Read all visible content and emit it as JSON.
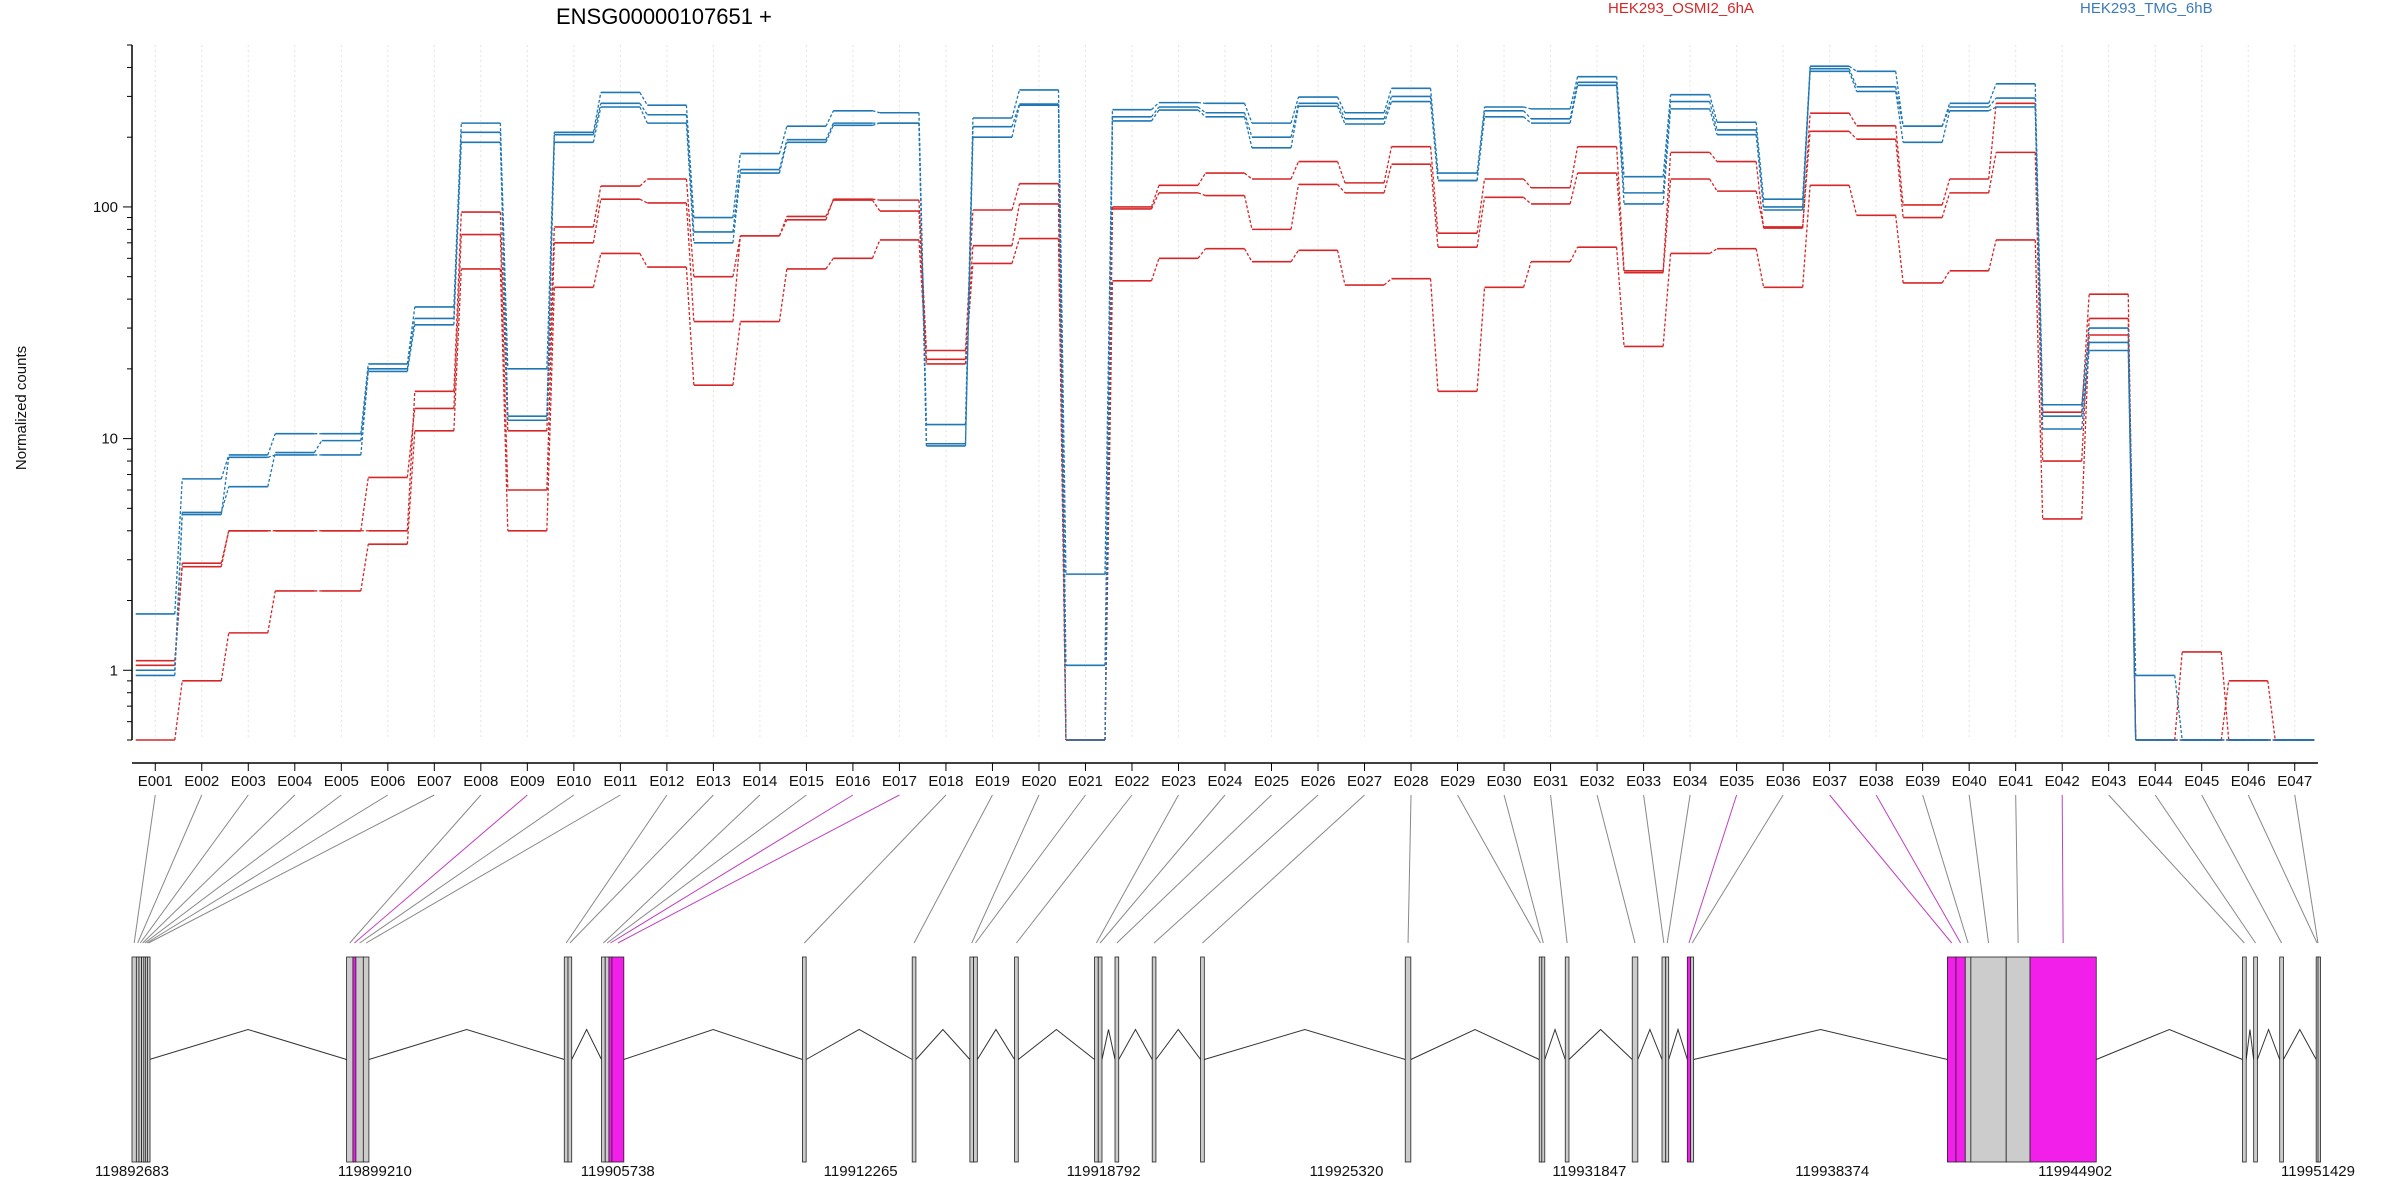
{
  "chart_data": {
    "type": "line",
    "title": "ENSG00000107651 +",
    "xlabel": "",
    "ylabel": "Normalized counts",
    "y_scale": "log",
    "ylim": [
      0.5,
      500
    ],
    "y_ticks": [
      1,
      10,
      100
    ],
    "y_tick_labels": [
      "1",
      "10",
      "100"
    ],
    "grid": "vertical dotted",
    "legend_placement": "top",
    "categories": [
      "E001",
      "E002",
      "E003",
      "E004",
      "E005",
      "E006",
      "E007",
      "E008",
      "E009",
      "E010",
      "E011",
      "E012",
      "E013",
      "E014",
      "E015",
      "E016",
      "E017",
      "E018",
      "E019",
      "E020",
      "E021",
      "E022",
      "E023",
      "E024",
      "E025",
      "E026",
      "E027",
      "E028",
      "E029",
      "E030",
      "E031",
      "E032",
      "E033",
      "E034",
      "E035",
      "E036",
      "E037",
      "E038",
      "E039",
      "E040",
      "E041",
      "E042",
      "E043",
      "E044",
      "E045",
      "E046",
      "E047"
    ],
    "legend": [
      {
        "label": "HEK293_OSMI2_6hA",
        "color": "#d62728"
      },
      {
        "label": "HEK293_TMG_6hB",
        "color": "#1f77b4"
      }
    ],
    "series": [
      {
        "group": "HEK293_OSMI2_6hA",
        "color": "#d62728",
        "values": [
          1.05,
          2.9,
          4,
          4,
          4,
          4,
          16,
          95,
          10.8,
          82,
          123,
          132,
          50,
          75,
          88,
          108,
          107,
          24,
          97,
          126,
          0.5,
          100,
          124,
          140,
          132,
          157,
          127,
          182,
          77,
          132,
          121,
          182,
          53,
          172,
          157,
          81,
          254,
          224,
          102,
          132,
          280,
          13,
          42,
          0.5,
          0.5,
          0.5,
          0.5
        ]
      },
      {
        "group": "HEK293_OSMI2_6hA",
        "color": "#d62728",
        "values": [
          1.1,
          2.8,
          4,
          4,
          4,
          6.8,
          13.5,
          76,
          6,
          70,
          108,
          104,
          32,
          75,
          91,
          107,
          96,
          22,
          68,
          103,
          0.5,
          98,
          115,
          112,
          80,
          125,
          115,
          153,
          67,
          110,
          103,
          140,
          52,
          132,
          117,
          82,
          212,
          196,
          90,
          115,
          172,
          8,
          33,
          0.5,
          1.2,
          0.5,
          0.5
        ]
      },
      {
        "group": "HEK293_OSMI2_6hA",
        "color": "#d62728",
        "values": [
          0.5,
          0.9,
          1.45,
          2.2,
          2.2,
          3.5,
          10.8,
          54,
          4,
          45,
          63,
          55,
          17,
          32,
          54,
          60,
          72,
          21,
          57,
          73,
          0.5,
          48,
          60,
          66,
          58,
          65,
          46,
          49,
          16,
          45,
          58,
          67,
          25,
          63,
          66,
          45,
          124,
          92,
          47,
          53,
          72,
          4.5,
          28,
          0.5,
          0.5,
          0.9,
          0.5
        ]
      },
      {
        "group": "HEK293_TMG_6hB",
        "color": "#1f77b4",
        "values": [
          1.75,
          6.7,
          8.5,
          10.5,
          10.5,
          21,
          37,
          230,
          20,
          210,
          312,
          275,
          90,
          170,
          223,
          260,
          255,
          11.5,
          242,
          320,
          2.6,
          263,
          282,
          280,
          230,
          298,
          255,
          325,
          140,
          270,
          265,
          365,
          135,
          305,
          232,
          108,
          405,
          385,
          223,
          280,
          340,
          14,
          30,
          0.95,
          0.5,
          0.5,
          0.5
        ]
      },
      {
        "group": "HEK293_TMG_6hB",
        "color": "#1f77b4",
        "values": [
          1.0,
          4.8,
          6.2,
          8.7,
          9.8,
          20,
          33,
          210,
          12.5,
          205,
          280,
          250,
          78,
          145,
          195,
          230,
          230,
          9.5,
          222,
          278,
          1.05,
          245,
          270,
          255,
          200,
          280,
          240,
          300,
          130,
          260,
          240,
          345,
          115,
          285,
          215,
          100,
          395,
          330,
          223,
          270,
          295,
          12.5,
          26,
          0.5,
          0.5,
          0.5,
          0.5
        ]
      },
      {
        "group": "HEK293_TMG_6hB",
        "color": "#1f77b4",
        "values": [
          0.95,
          4.7,
          8.3,
          8.5,
          8.5,
          19.5,
          31,
          190,
          12,
          190,
          270,
          230,
          70,
          140,
          190,
          225,
          230,
          9.3,
          200,
          275,
          0.5,
          235,
          262,
          245,
          180,
          272,
          228,
          285,
          130,
          245,
          230,
          335,
          103,
          265,
          205,
          97,
          385,
          315,
          190,
          260,
          270,
          11,
          24,
          0.5,
          0.5,
          0.5,
          0.5
        ]
      }
    ]
  },
  "gene_model": {
    "coordinate_labels": [
      "119892683",
      "119899210",
      "119905738",
      "119912265",
      "119918792",
      "119925320",
      "119931847",
      "119938374",
      "119944902",
      "119951429"
    ],
    "gene_start": 119892683,
    "gene_end": 119951429,
    "colors": {
      "exon_fill": "#cccccc",
      "significant_fill": "#f21fea",
      "connector": "#888888",
      "significant_connector": "#c040c0"
    },
    "exons": [
      {
        "id": "E001",
        "start": 119892683,
        "end": 119892800,
        "sig": false
      },
      {
        "id": "E002",
        "start": 119892800,
        "end": 119892870,
        "sig": false
      },
      {
        "id": "E003",
        "start": 119892870,
        "end": 119892940,
        "sig": false
      },
      {
        "id": "E004",
        "start": 119892940,
        "end": 119893000,
        "sig": false
      },
      {
        "id": "E005",
        "start": 119893000,
        "end": 119893050,
        "sig": false
      },
      {
        "id": "E006",
        "start": 119893050,
        "end": 119893100,
        "sig": false
      },
      {
        "id": "E007",
        "start": 119893100,
        "end": 119893150,
        "sig": false
      },
      {
        "id": "E008",
        "start": 119898450,
        "end": 119898620,
        "sig": false
      },
      {
        "id": "E009",
        "start": 119898620,
        "end": 119898700,
        "sig": true
      },
      {
        "id": "E010",
        "start": 119898700,
        "end": 119898900,
        "sig": false
      },
      {
        "id": "E011",
        "start": 119898900,
        "end": 119899050,
        "sig": false
      },
      {
        "id": "E012",
        "start": 119904300,
        "end": 119904400,
        "sig": false
      },
      {
        "id": "E013",
        "start": 119904400,
        "end": 119904500,
        "sig": false
      },
      {
        "id": "E014",
        "start": 119905300,
        "end": 119905400,
        "sig": false
      },
      {
        "id": "E015",
        "start": 119905400,
        "end": 119905500,
        "sig": false
      },
      {
        "id": "E016",
        "start": 119905500,
        "end": 119905580,
        "sig": true
      },
      {
        "id": "E017",
        "start": 119905580,
        "end": 119905900,
        "sig": true
      },
      {
        "id": "E018",
        "start": 119910700,
        "end": 119910800,
        "sig": false
      },
      {
        "id": "E019",
        "start": 119913650,
        "end": 119913750,
        "sig": false
      },
      {
        "id": "E020",
        "start": 119915200,
        "end": 119915300,
        "sig": false
      },
      {
        "id": "E021",
        "start": 119915300,
        "end": 119915400,
        "sig": false
      },
      {
        "id": "E022",
        "start": 119916400,
        "end": 119916500,
        "sig": false
      },
      {
        "id": "E023",
        "start": 119918550,
        "end": 119918650,
        "sig": false
      },
      {
        "id": "E024",
        "start": 119918650,
        "end": 119918750,
        "sig": false
      },
      {
        "id": "E025",
        "start": 119919100,
        "end": 119919200,
        "sig": false
      },
      {
        "id": "E026",
        "start": 119920100,
        "end": 119920200,
        "sig": false
      },
      {
        "id": "E027",
        "start": 119921400,
        "end": 119921500,
        "sig": false
      },
      {
        "id": "E028",
        "start": 119926900,
        "end": 119927050,
        "sig": false
      },
      {
        "id": "E029",
        "start": 119930500,
        "end": 119930570,
        "sig": false
      },
      {
        "id": "E030",
        "start": 119930570,
        "end": 119930650,
        "sig": false
      },
      {
        "id": "E031",
        "start": 119931200,
        "end": 119931300,
        "sig": false
      },
      {
        "id": "E032",
        "start": 119933000,
        "end": 119933150,
        "sig": false
      },
      {
        "id": "E033",
        "start": 119933800,
        "end": 119933900,
        "sig": false
      },
      {
        "id": "E034",
        "start": 119933900,
        "end": 119933980,
        "sig": false
      },
      {
        "id": "E035",
        "start": 119934480,
        "end": 119934570,
        "sig": true
      },
      {
        "id": "E036",
        "start": 119934570,
        "end": 119934650,
        "sig": false
      },
      {
        "id": "E037",
        "start": 119941470,
        "end": 119941700,
        "sig": true
      },
      {
        "id": "E038",
        "start": 119941700,
        "end": 119941950,
        "sig": true
      },
      {
        "id": "E039",
        "start": 119941950,
        "end": 119942100,
        "sig": false
      },
      {
        "id": "E040",
        "start": 119942100,
        "end": 119943050,
        "sig": false
      },
      {
        "id": "E041",
        "start": 119943050,
        "end": 119943690,
        "sig": false
      },
      {
        "id": "E042",
        "start": 119943690,
        "end": 119945470,
        "sig": true
      },
      {
        "id": "E043",
        "start": 119949400,
        "end": 119949500,
        "sig": false
      },
      {
        "id": "E044",
        "start": 119949700,
        "end": 119949800,
        "sig": false
      },
      {
        "id": "E045",
        "start": 119950400,
        "end": 119950500,
        "sig": false
      },
      {
        "id": "E046",
        "start": 119951380,
        "end": 119951429,
        "sig": false
      },
      {
        "id": "E047",
        "start": 119951429,
        "end": 119951429,
        "sig": false
      }
    ],
    "introns": [
      [
        119893150,
        119898450
      ],
      [
        119899050,
        119904300
      ],
      [
        119904500,
        119905300
      ],
      [
        119905900,
        119910700
      ],
      [
        119910800,
        119913650
      ],
      [
        119913750,
        119915200
      ],
      [
        119915400,
        119916400
      ],
      [
        119916500,
        119918550
      ],
      [
        119918750,
        119919100
      ],
      [
        119919200,
        119920100
      ],
      [
        119920200,
        119921400
      ],
      [
        119921500,
        119926900
      ],
      [
        119927050,
        119930500
      ],
      [
        119930650,
        119931200
      ],
      [
        119931300,
        119933000
      ],
      [
        119933150,
        119933800
      ],
      [
        119933980,
        119934480
      ],
      [
        119934650,
        119941470
      ],
      [
        119945470,
        119949400
      ],
      [
        119949500,
        119949700
      ],
      [
        119949800,
        119950400
      ],
      [
        119950500,
        119951380
      ]
    ]
  }
}
